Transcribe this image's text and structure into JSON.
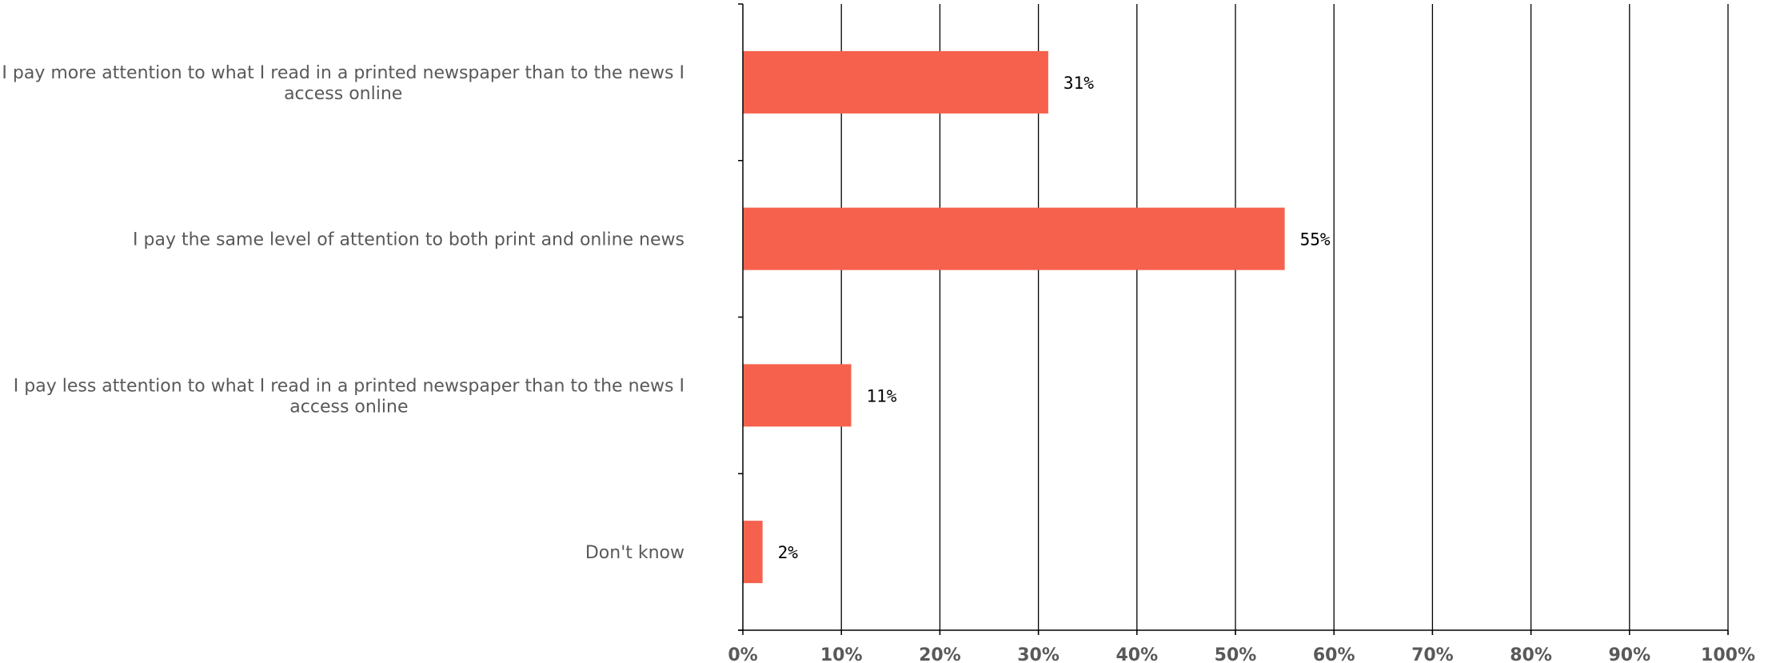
{
  "chart_data": {
    "type": "bar",
    "orientation": "horizontal",
    "title": "",
    "xlabel": "",
    "ylabel": "",
    "categories": [
      [
        "I pay more attention to what I read in a printed newspaper than to the news I",
        "access online"
      ],
      [
        "I pay the same level of attention to both print and online news"
      ],
      [
        "I pay less attention to what I read in a printed newspaper than to the news I",
        "access online"
      ],
      [
        "Don't know"
      ]
    ],
    "values": [
      31,
      55,
      11,
      2
    ],
    "value_labels": [
      "31%",
      "55%",
      "11%",
      "2%"
    ],
    "xlim": [
      0,
      100
    ],
    "x_ticks": [
      0,
      10,
      20,
      30,
      40,
      50,
      60,
      70,
      80,
      90,
      100
    ],
    "x_tick_labels": [
      "0%",
      "10%",
      "20%",
      "30%",
      "40%",
      "50%",
      "60%",
      "70%",
      "80%",
      "90%",
      "100%"
    ],
    "grid": "vertical",
    "legend": "none",
    "colors": {
      "bar": "#F6614E",
      "grid": "#000000",
      "label": "#595959",
      "value": "#000000"
    }
  }
}
